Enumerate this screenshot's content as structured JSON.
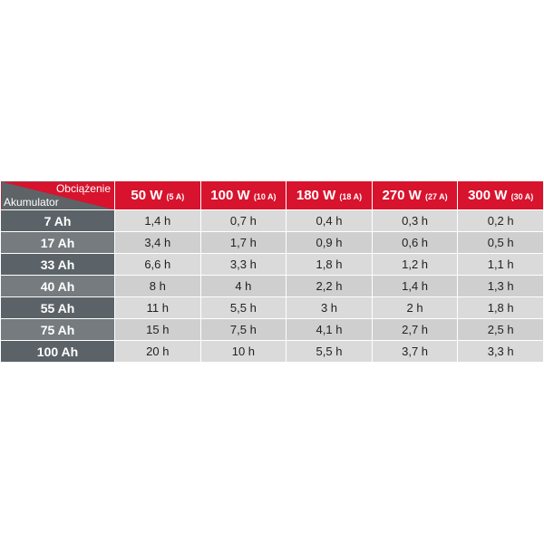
{
  "corner": {
    "load_label": "Obciążenie",
    "battery_label": "Akumulator"
  },
  "columns": [
    {
      "power": "50 W",
      "current": "(5 A)"
    },
    {
      "power": "100 W",
      "current": "(10 A)"
    },
    {
      "power": "180 W",
      "current": "(18 A)"
    },
    {
      "power": "270 W",
      "current": "(27 A)"
    },
    {
      "power": "300 W",
      "current": "(30 A)"
    }
  ],
  "rows": [
    {
      "battery": "7 Ah",
      "values": [
        "1,4 h",
        "0,7 h",
        "0,4 h",
        "0,3 h",
        "0,2 h"
      ]
    },
    {
      "battery": "17 Ah",
      "values": [
        "3,4 h",
        "1,7 h",
        "0,9 h",
        "0,6 h",
        "0,5 h"
      ]
    },
    {
      "battery": "33 Ah",
      "values": [
        "6,6 h",
        "3,3 h",
        "1,8 h",
        "1,2 h",
        "1,1 h"
      ]
    },
    {
      "battery": "40 Ah",
      "values": [
        "8 h",
        "4 h",
        "2,2 h",
        "1,4 h",
        "1,3 h"
      ]
    },
    {
      "battery": "55 Ah",
      "values": [
        "11 h",
        "5,5 h",
        "3 h",
        "2 h",
        "1,8 h"
      ]
    },
    {
      "battery": "75 Ah",
      "values": [
        "15 h",
        "7,5 h",
        "4,1 h",
        "2,7 h",
        "2,5 h"
      ]
    },
    {
      "battery": "100 Ah",
      "values": [
        "20 h",
        "10 h",
        "5,5 h",
        "3,7 h",
        "3,3 h"
      ]
    }
  ],
  "colors": {
    "header_red": "#d7132d",
    "row_label_dark": "#5c6368",
    "row_label_light": "#757b7f",
    "cell_light": "#dadada",
    "cell_dark": "#cfcfcf"
  }
}
